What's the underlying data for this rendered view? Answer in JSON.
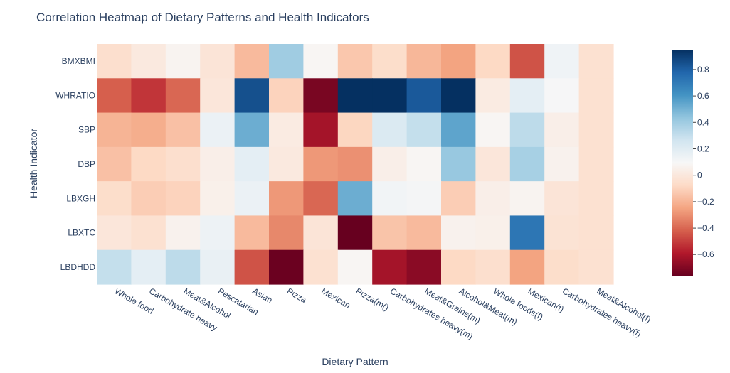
{
  "chart_data": {
    "type": "heatmap",
    "title": "Correlation Heatmap of Dietary Patterns and Health Indicators",
    "xlabel": "Dietary Pattern",
    "ylabel": "Health Indicator",
    "x_categories": [
      "Whole food",
      "Carbohydrate heavy",
      "Meat&Alcohol",
      "Pescatarian",
      "Asian",
      "Pizza",
      "Mexican",
      "Pizza(m()",
      "Carbohydrates heavy(m)",
      "Meat&Grains(m)",
      "Alcohol&Meat(m)",
      "Whole foods(f)",
      "Mexican(f)",
      "Carbohydrates heavy(f)",
      "Meat&Alcohol(f)"
    ],
    "y_categories": [
      "BMXBMI",
      "WHRATIO",
      "SBP",
      "DBP",
      "LBXGH",
      "LBXTC",
      "LBDHDD"
    ],
    "z": [
      [
        -0.05,
        0.01,
        0.07,
        -0.02,
        -0.18,
        0.4,
        0.08,
        -0.14,
        -0.06,
        -0.19,
        -0.25,
        -0.08,
        -0.45,
        0.13,
        -0.04
      ],
      [
        -0.42,
        -0.52,
        -0.4,
        -0.01,
        0.85,
        -0.1,
        -0.72,
        0.95,
        0.95,
        0.82,
        0.95,
        0.02,
        0.18,
        0.1,
        -0.04
      ],
      [
        -0.2,
        -0.22,
        -0.16,
        0.15,
        0.52,
        0.02,
        -0.62,
        -0.09,
        0.22,
        0.3,
        0.55,
        0.08,
        0.32,
        0.04,
        -0.04
      ],
      [
        -0.16,
        -0.08,
        -0.05,
        0.04,
        0.18,
        0.01,
        -0.28,
        -0.3,
        0.04,
        0.08,
        0.42,
        -0.01,
        0.38,
        0.06,
        -0.04
      ],
      [
        -0.06,
        -0.12,
        -0.1,
        0.05,
        0.15,
        -0.28,
        -0.4,
        0.52,
        0.12,
        0.11,
        -0.12,
        0.04,
        0.07,
        -0.02,
        -0.04
      ],
      [
        -0.01,
        -0.04,
        0.06,
        0.14,
        -0.18,
        -0.32,
        -0.02,
        -0.76,
        -0.15,
        -0.18,
        0.06,
        0.05,
        0.72,
        -0.03,
        -0.04
      ],
      [
        0.3,
        0.18,
        0.32,
        0.16,
        -0.45,
        -0.75,
        -0.04,
        0.08,
        -0.62,
        -0.68,
        -0.08,
        -0.05,
        -0.25,
        -0.06,
        -0.04
      ]
    ],
    "zmin": -0.76,
    "zmax": 0.95,
    "colorscale": "RdBu",
    "colorbar_ticks": [
      0.8,
      0.6,
      0.4,
      0.2,
      0,
      -0.2,
      -0.4,
      -0.6
    ],
    "colorbar_tick_labels": [
      "0.8",
      "0.6",
      "0.4",
      "0.2",
      "0",
      "−0.2",
      "−0.4",
      "−0.6"
    ],
    "grid": false,
    "legend": "colorbar-right"
  }
}
